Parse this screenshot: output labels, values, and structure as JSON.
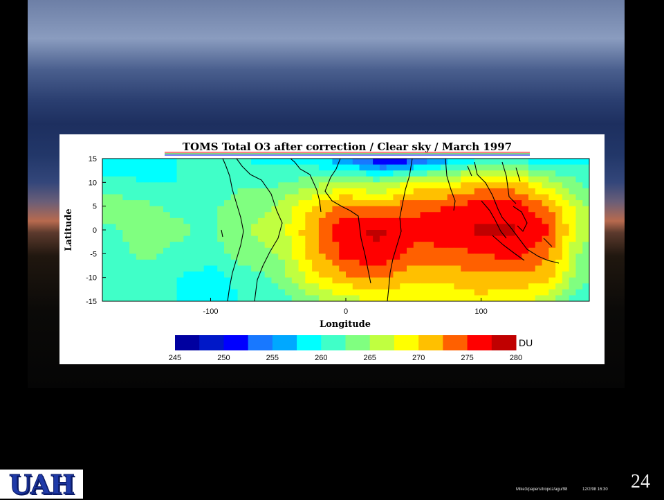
{
  "slide": {
    "number": "24",
    "footer_path": "Mike3/papers/tropoz/agu/98",
    "footer_date": "12/2/98 16:30",
    "logo_text": "UAH"
  },
  "colors": {
    "bands": [
      "#0000a0",
      "#0018c8",
      "#0000ff",
      "#1878ff",
      "#00a8ff",
      "#00ffff",
      "#40ffc8",
      "#80ff80",
      "#c0ff40",
      "#ffff00",
      "#ffc000",
      "#ff6000",
      "#ff0000",
      "#c00000"
    ]
  },
  "chart_data": {
    "type": "heatmap",
    "title": "TOMS Total O3 after correction  /  Clear sky  /  March 1997",
    "xlabel": "Longitude",
    "ylabel": "Latitude",
    "xlim": [
      -180,
      180
    ],
    "ylim": [
      -15,
      15
    ],
    "x_ticks": [
      -100,
      0,
      100
    ],
    "y_ticks": [
      15,
      10,
      5,
      0,
      -5,
      -10,
      -15
    ],
    "colorbar": {
      "unit": "DU",
      "tick_labels": [
        245,
        250,
        255,
        260,
        265,
        270,
        275,
        280
      ],
      "vmin": 245,
      "vmax": 280
    },
    "lon": [
      -175,
      -150,
      -125,
      -100,
      -75,
      -50,
      -25,
      0,
      25,
      50,
      75,
      100,
      125,
      150,
      175
    ],
    "lat": [
      15,
      10,
      5,
      0,
      -5,
      -10,
      -15
    ],
    "values": [
      [
        258,
        259,
        260,
        260,
        260,
        259,
        258,
        255,
        249,
        251,
        256,
        259,
        259,
        258,
        259
      ],
      [
        261,
        260,
        260,
        260,
        262,
        262,
        264,
        266,
        264,
        268,
        268,
        271,
        271,
        266,
        262
      ],
      [
        264,
        263,
        262,
        262,
        264,
        265,
        270,
        273,
        272,
        274,
        275,
        276,
        276,
        273,
        265
      ],
      [
        262,
        264,
        263,
        262,
        265,
        266,
        272,
        277,
        278,
        276,
        277,
        278,
        278,
        275,
        266
      ],
      [
        261,
        263,
        262,
        261,
        264,
        265,
        271,
        276,
        277,
        274,
        274,
        275,
        276,
        273,
        264
      ],
      [
        261,
        262,
        260,
        259,
        261,
        263,
        269,
        272,
        273,
        271,
        271,
        272,
        272,
        271,
        263
      ],
      [
        261,
        260,
        260,
        259,
        260,
        261,
        264,
        266,
        268,
        267,
        268,
        269,
        268,
        266,
        260
      ]
    ]
  }
}
